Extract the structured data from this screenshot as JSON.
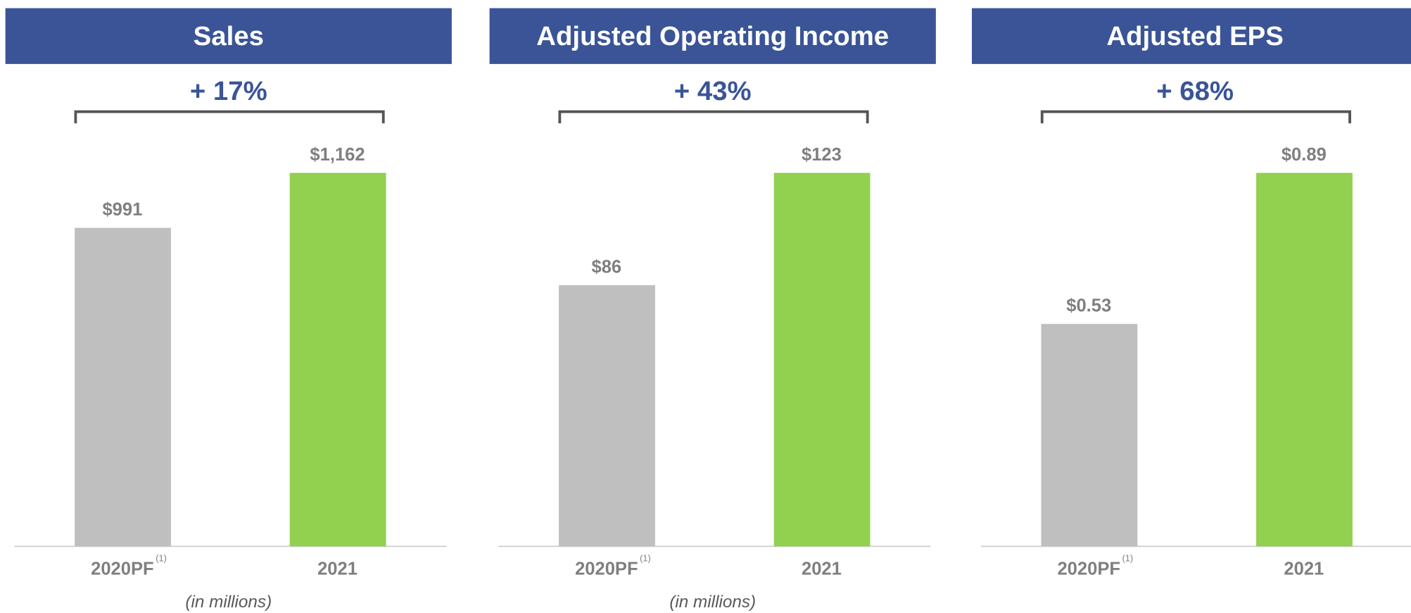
{
  "chart_data": [
    {
      "type": "bar",
      "title": "Sales",
      "change_label": "+ 17%",
      "categories": [
        "2020PF",
        "2021"
      ],
      "footnote_marks": [
        "(1)",
        null
      ],
      "values": [
        991,
        1162
      ],
      "value_labels": [
        "$991",
        "$1,162"
      ],
      "colors": [
        "#bfbfbf",
        "#92d050"
      ],
      "note": "(in millions)"
    },
    {
      "type": "bar",
      "title": "Adjusted Operating Income",
      "change_label": "+ 43%",
      "categories": [
        "2020PF",
        "2021"
      ],
      "footnote_marks": [
        "(1)",
        null
      ],
      "values": [
        86,
        123
      ],
      "value_labels": [
        "$86",
        "$123"
      ],
      "colors": [
        "#bfbfbf",
        "#92d050"
      ],
      "note": "(in millions)"
    },
    {
      "type": "bar",
      "title": "Adjusted EPS",
      "change_label": "+ 68%",
      "categories": [
        "2020PF",
        "2021"
      ],
      "footnote_marks": [
        "(1)",
        null
      ],
      "values": [
        0.53,
        0.89
      ],
      "value_labels": [
        "$0.53",
        "$0.89"
      ],
      "colors": [
        "#bfbfbf",
        "#92d050"
      ]
    }
  ]
}
